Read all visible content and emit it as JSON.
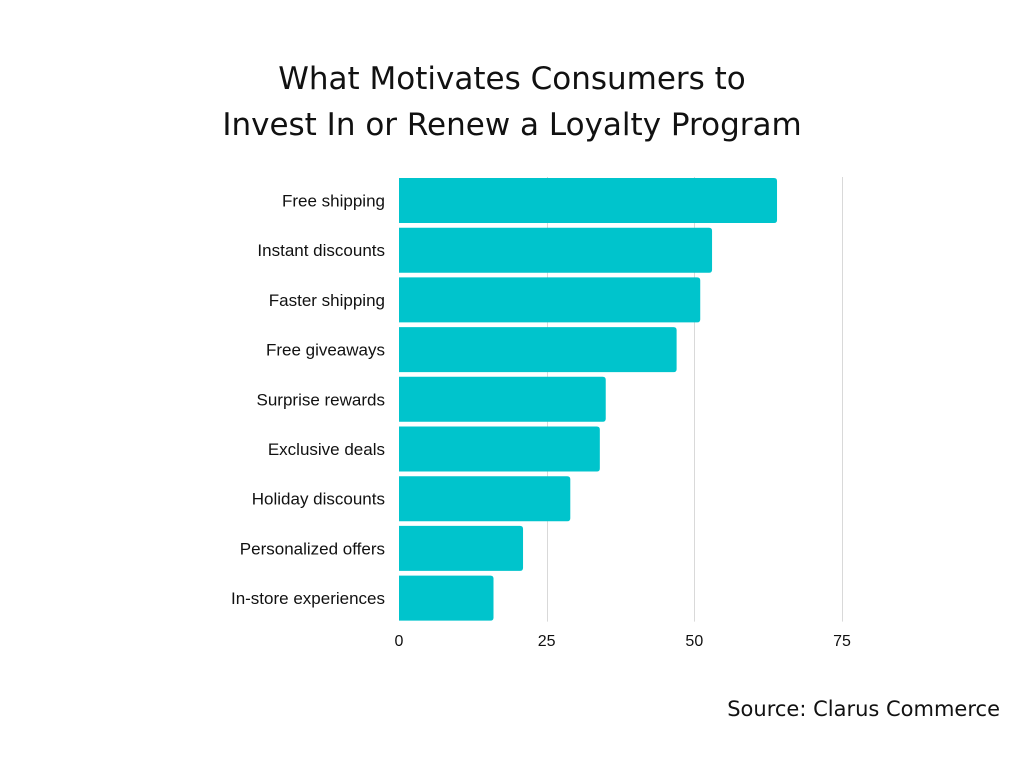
{
  "title": {
    "line1": "What Motivates Consumers to",
    "line2": "Invest In or Renew a Loyalty Program"
  },
  "source": "Source: Clarus Commerce",
  "colors": {
    "bar": "#00C4CC",
    "grid": "#d9d9d9",
    "text": "#111111"
  },
  "chart_data": {
    "type": "bar",
    "orientation": "horizontal",
    "title": "What Motivates Consumers to Invest In or Renew a Loyalty Program",
    "categories": [
      "Free shipping",
      "Instant discounts",
      "Faster shipping",
      "Free giveaways",
      "Surprise rewards",
      "Exclusive deals",
      "Holiday discounts",
      "Personalized offers",
      "In-store experiences"
    ],
    "values": [
      64,
      53,
      51,
      47,
      35,
      34,
      29,
      21,
      16
    ],
    "xlim": [
      0,
      75
    ],
    "xticks": [
      0,
      25,
      50,
      75
    ],
    "xlabel": "",
    "ylabel": "",
    "grid": true,
    "legend": "none"
  }
}
